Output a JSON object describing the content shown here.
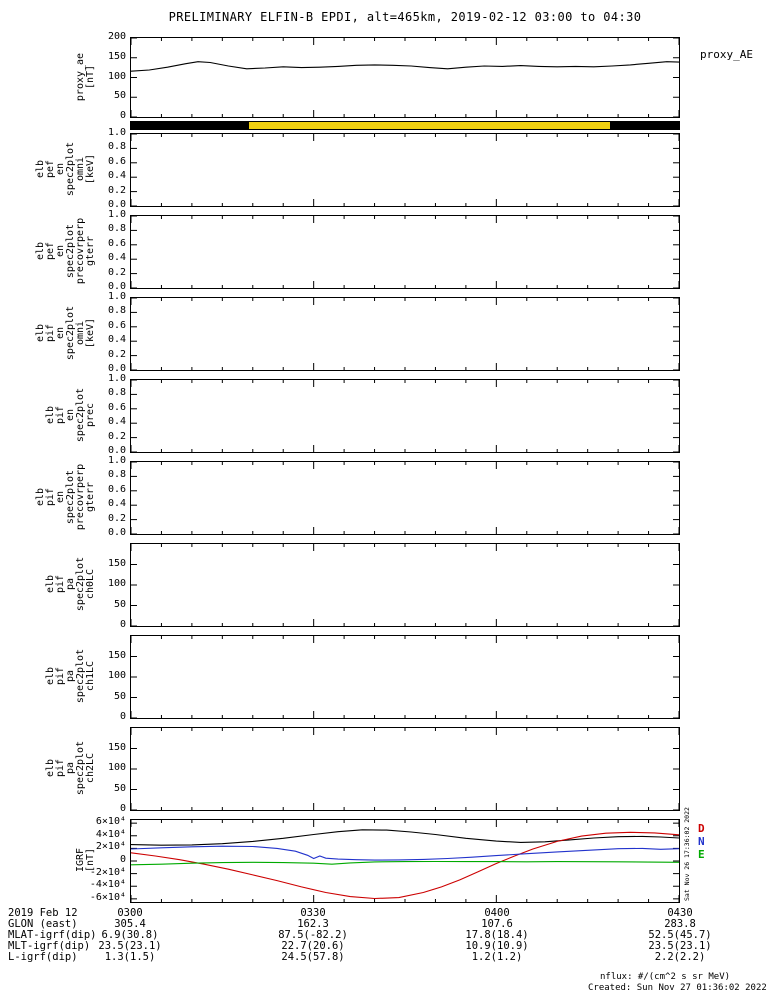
{
  "title": "PRELIMINARY ELFIN-B EPDI, alt=465km, 2019-02-12 03:00 to 04:30",
  "labels": {
    "proxy_ae_right": "proxy_AE",
    "side_timestamp": "Sat Nov 26 17:36:02 2022",
    "nflux_units": "nflux: #/(cm^2 s sr MeV)",
    "created": "Created: Sun Nov 27 01:36:02 2022"
  },
  "colors": {
    "foreground": "#000000",
    "background": "#ffffff",
    "availability_yellow": "#f0d010",
    "igrf_b": "#000000",
    "igrf_d": "#cc0000",
    "igrf_n": "#2233cc",
    "igrf_e": "#00aa00"
  },
  "time_axis": {
    "date_label": "2019 Feb 12",
    "ticks": [
      "0300",
      "0330",
      "0400",
      "0430"
    ],
    "tick_minutes": [
      0,
      30,
      60,
      90
    ],
    "xlim": [
      0,
      90
    ]
  },
  "var_rows": [
    {
      "label": "GLON (east)",
      "values": [
        "305.4",
        "162.3",
        "107.6",
        "283.8"
      ]
    },
    {
      "label": "MLAT-igrf(dip)",
      "values": [
        "6.9(30.8)",
        "87.5(-82.2)",
        "17.8(18.4)",
        "52.5(45.7)"
      ]
    },
    {
      "label": "MLT-igrf(dip)",
      "values": [
        "23.5(23.1)",
        "22.7(20.6)",
        "10.9(10.9)",
        "23.5(23.1)"
      ]
    },
    {
      "label": "L-igrf(dip)",
      "values": [
        "1.3(1.5)",
        "24.5(57.8)",
        "1.2(1.2)",
        "2.2(2.2)"
      ]
    }
  ],
  "chart_data": [
    {
      "id": "proxy_ae",
      "type": "line",
      "ylabel_lines": [
        "proxy_ae",
        "[nT]"
      ],
      "xlim": [
        0,
        90
      ],
      "ylim": [
        0,
        200
      ],
      "yticks": [
        0,
        50,
        100,
        150,
        200
      ],
      "ytick_labels": [
        "0",
        "50",
        "100",
        "150",
        "200"
      ],
      "series": [
        {
          "name": "proxy_AE",
          "color": "#000000",
          "x": [
            0,
            3,
            6,
            9,
            11,
            13,
            16,
            19,
            22,
            25,
            28,
            31,
            34,
            37,
            40,
            43,
            46,
            49,
            52,
            55,
            58,
            61,
            64,
            67,
            70,
            73,
            76,
            79,
            82,
            85,
            88,
            90
          ],
          "y": [
            116,
            119,
            126,
            135,
            140,
            138,
            129,
            122,
            124,
            127,
            125,
            126,
            128,
            131,
            132,
            131,
            129,
            125,
            122,
            126,
            129,
            128,
            130,
            128,
            127,
            128,
            127,
            129,
            132,
            136,
            140,
            139
          ]
        }
      ]
    },
    {
      "id": "availability",
      "type": "strip",
      "xlim": [
        0,
        90
      ],
      "segments": [
        {
          "color": "#000000",
          "t0": 0,
          "t1": 19.3
        },
        {
          "color": "#f0d010",
          "t0": 19.3,
          "t1": 78.7
        },
        {
          "color": "#000000",
          "t0": 78.7,
          "t1": 90
        }
      ]
    },
    {
      "id": "elb_pef_en_spec2plot_omni",
      "type": "line",
      "ylabel_lines": [
        "elb",
        "pef",
        "en",
        "spec2plot",
        "omni",
        "[keV]"
      ],
      "xlim": [
        0,
        90
      ],
      "ylim": [
        0,
        1
      ],
      "yticks": [
        0,
        0.2,
        0.4,
        0.6,
        0.8,
        1.0
      ],
      "ytick_labels": [
        "0.0",
        "0.2",
        "0.4",
        "0.6",
        "0.8",
        "1.0"
      ],
      "series": []
    },
    {
      "id": "elb_pef_en_spec2plot_precovrperp_gterr",
      "type": "line",
      "ylabel_lines": [
        "elb",
        "pef",
        "en",
        "spec2plot",
        "precovrperp",
        "gterr"
      ],
      "xlim": [
        0,
        90
      ],
      "ylim": [
        0,
        1
      ],
      "yticks": [
        0,
        0.2,
        0.4,
        0.6,
        0.8,
        1.0
      ],
      "ytick_labels": [
        "0.0",
        "0.2",
        "0.4",
        "0.6",
        "0.8",
        "1.0"
      ],
      "series": []
    },
    {
      "id": "elb_pif_en_spec2plot_omni",
      "type": "line",
      "ylabel_lines": [
        "elb",
        "pif",
        "en",
        "spec2plot",
        "omni",
        "[keV]"
      ],
      "xlim": [
        0,
        90
      ],
      "ylim": [
        0,
        1
      ],
      "yticks": [
        0,
        0.2,
        0.4,
        0.6,
        0.8,
        1.0
      ],
      "ytick_labels": [
        "0.0",
        "0.2",
        "0.4",
        "0.6",
        "0.8",
        "1.0"
      ],
      "series": []
    },
    {
      "id": "elb_pif_en_spec2plot_prec",
      "type": "line",
      "ylabel_lines": [
        "elb",
        "pif",
        "en",
        "spec2plot",
        "prec"
      ],
      "xlim": [
        0,
        90
      ],
      "ylim": [
        0,
        1
      ],
      "yticks": [
        0,
        0.2,
        0.4,
        0.6,
        0.8,
        1.0
      ],
      "ytick_labels": [
        "0.0",
        "0.2",
        "0.4",
        "0.6",
        "0.8",
        "1.0"
      ],
      "series": []
    },
    {
      "id": "elb_pif_en_spec2plot_precovrperp_gterr",
      "type": "line",
      "ylabel_lines": [
        "elb",
        "pif",
        "en",
        "spec2plot",
        "precovrperp",
        "gterr"
      ],
      "xlim": [
        0,
        90
      ],
      "ylim": [
        0,
        1
      ],
      "yticks": [
        0,
        0.2,
        0.4,
        0.6,
        0.8,
        1.0
      ],
      "ytick_labels": [
        "0.0",
        "0.2",
        "0.4",
        "0.6",
        "0.8",
        "1.0"
      ],
      "series": []
    },
    {
      "id": "elb_pif_pa_spec2plot_ch0LC",
      "type": "line",
      "ylabel_lines": [
        "elb",
        "pif",
        "pa",
        "spec2plot",
        "ch0LC"
      ],
      "xlim": [
        0,
        90
      ],
      "ylim": [
        0,
        200
      ],
      "yticks": [
        0,
        50,
        100,
        150
      ],
      "ytick_labels": [
        "0",
        "50",
        "100",
        "150"
      ],
      "series": []
    },
    {
      "id": "elb_pif_pa_spec2plot_ch1LC",
      "type": "line",
      "ylabel_lines": [
        "elb",
        "pif",
        "pa",
        "spec2plot",
        "ch1LC"
      ],
      "xlim": [
        0,
        90
      ],
      "ylim": [
        0,
        200
      ],
      "yticks": [
        0,
        50,
        100,
        150
      ],
      "ytick_labels": [
        "0",
        "50",
        "100",
        "150"
      ],
      "series": []
    },
    {
      "id": "elb_pif_pa_spec2plot_ch2LC",
      "type": "line",
      "ylabel_lines": [
        "elb",
        "pif",
        "pa",
        "spec2plot",
        "ch2LC"
      ],
      "xlim": [
        0,
        90
      ],
      "ylim": [
        0,
        200
      ],
      "yticks": [
        0,
        50,
        100,
        150
      ],
      "ytick_labels": [
        "0",
        "50",
        "100",
        "150"
      ],
      "series": []
    },
    {
      "id": "igrf",
      "type": "line",
      "ylabel_lines": [
        "IGRF",
        "[nT]"
      ],
      "xlim": [
        0,
        90
      ],
      "ylim": [
        -65000,
        65000
      ],
      "yticks": [
        -60000,
        -40000,
        -20000,
        0,
        20000,
        40000,
        60000
      ],
      "ytick_labels": [
        "-6×10⁴",
        "-4×10⁴",
        "-2×10⁴",
        "0",
        "2×10⁴",
        "4×10⁴",
        "6×10⁴"
      ],
      "legend": [
        {
          "label": "D",
          "color": "#cc0000"
        },
        {
          "label": "N",
          "color": "#2233cc"
        },
        {
          "label": "E",
          "color": "#00aa00"
        }
      ],
      "series": [
        {
          "name": "B",
          "color": "#000000",
          "x": [
            0,
            5,
            10,
            15,
            20,
            25,
            30,
            34,
            38,
            42,
            46,
            50,
            55,
            60,
            64,
            68,
            72,
            76,
            80,
            84,
            87,
            90
          ],
          "y": [
            26000,
            25000,
            25500,
            27500,
            31000,
            36000,
            42000,
            46500,
            49500,
            49000,
            46000,
            42000,
            36000,
            31500,
            29500,
            30500,
            33500,
            36500,
            38500,
            39000,
            38000,
            36500
          ]
        },
        {
          "name": "D",
          "color": "#cc0000",
          "x": [
            0,
            4,
            8,
            12,
            16,
            20,
            24,
            28,
            32,
            36,
            40,
            44,
            48,
            51,
            54,
            57,
            60,
            63,
            66,
            70,
            74,
            78,
            82,
            86,
            90
          ],
          "y": [
            13000,
            8000,
            2000,
            -5000,
            -13000,
            -22000,
            -31000,
            -41000,
            -50000,
            -56500,
            -59500,
            -58000,
            -50000,
            -41000,
            -30000,
            -17000,
            -4000,
            8000,
            19000,
            31000,
            39500,
            44000,
            45500,
            44500,
            41500
          ]
        },
        {
          "name": "N",
          "color": "#2233cc",
          "x": [
            0,
            5,
            10,
            15,
            20,
            24,
            27,
            29,
            30,
            31,
            32,
            34,
            37,
            40,
            44,
            48,
            52,
            56,
            60,
            65,
            70,
            75,
            80,
            84,
            87,
            90
          ],
          "y": [
            19000,
            21000,
            22500,
            23500,
            23000,
            20000,
            15500,
            9000,
            4000,
            8000,
            4500,
            3000,
            2000,
            1500,
            1800,
            2500,
            4000,
            6000,
            8500,
            11500,
            14500,
            17000,
            19500,
            20000,
            18500,
            19500
          ]
        },
        {
          "name": "E",
          "color": "#00aa00",
          "x": [
            0,
            5,
            10,
            15,
            20,
            25,
            30,
            33,
            36,
            40,
            45,
            50,
            55,
            60,
            65,
            70,
            75,
            80,
            85,
            90
          ],
          "y": [
            -6000,
            -5000,
            -3500,
            -2500,
            -2000,
            -2500,
            -3500,
            -5000,
            -3000,
            -1500,
            -1000,
            -800,
            -900,
            -1000,
            -1200,
            -1000,
            -1100,
            -1300,
            -1700,
            -2000
          ]
        }
      ]
    }
  ]
}
